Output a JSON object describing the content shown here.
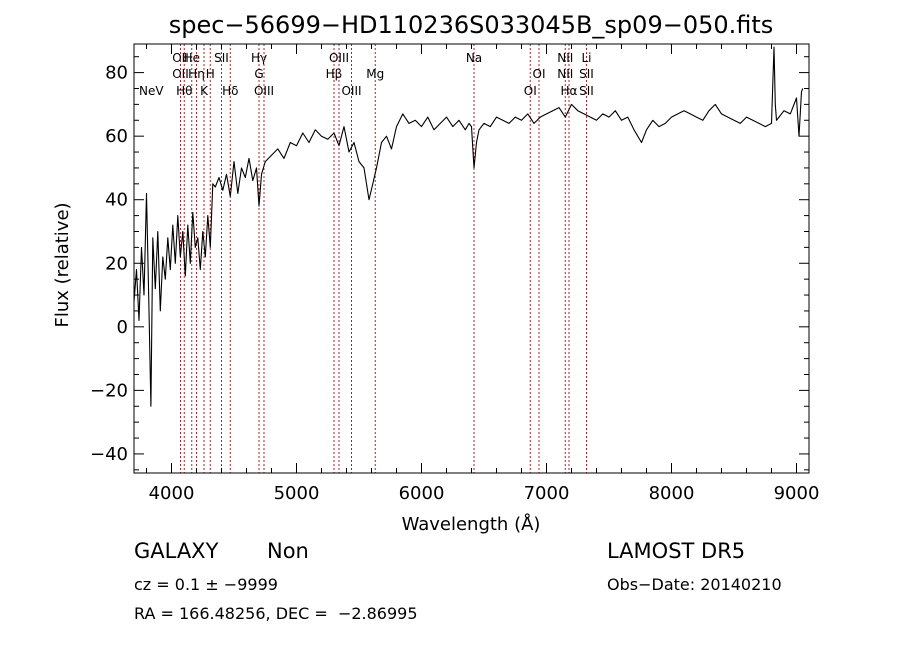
{
  "chart_data": {
    "type": "line",
    "title": "spec−56699−HD110236S033045B_sp09−050.fits",
    "xlabel": "Wavelength (Å)",
    "ylabel": "Flux (relative)",
    "xlim": [
      3700,
      9100
    ],
    "ylim": [
      -46,
      89
    ],
    "xticks": [
      4000,
      5000,
      6000,
      7000,
      8000,
      9000
    ],
    "yticks": [
      -40,
      -20,
      0,
      20,
      40,
      60,
      80
    ],
    "ytick_labels": [
      "−40",
      "−20",
      "0",
      "20",
      "40",
      "60",
      "80"
    ],
    "grid": false,
    "series": [
      {
        "x": [
          3700,
          3720,
          3740,
          3760,
          3780,
          3800,
          3820,
          3835,
          3850,
          3870,
          3890,
          3910,
          3930,
          3950,
          3970,
          3990,
          4010,
          4030,
          4050,
          4070,
          4090,
          4110,
          4130,
          4150,
          4170,
          4190,
          4210,
          4230,
          4250,
          4270,
          4290,
          4310,
          4330,
          4350,
          4380,
          4410,
          4440,
          4470,
          4500,
          4530,
          4560,
          4590,
          4620,
          4650,
          4680,
          4700,
          4720,
          4750,
          4800,
          4850,
          4900,
          4950,
          5000,
          5050,
          5100,
          5150,
          5200,
          5250,
          5300,
          5340,
          5380,
          5420,
          5460,
          5500,
          5540,
          5580,
          5610,
          5640,
          5680,
          5720,
          5760,
          5800,
          5850,
          5900,
          5950,
          6000,
          6050,
          6100,
          6150,
          6200,
          6250,
          6300,
          6350,
          6380,
          6400,
          6420,
          6440,
          6460,
          6500,
          6550,
          6600,
          6650,
          6700,
          6750,
          6800,
          6850,
          6900,
          6950,
          7000,
          7050,
          7100,
          7150,
          7200,
          7250,
          7300,
          7350,
          7400,
          7450,
          7500,
          7550,
          7600,
          7650,
          7700,
          7760,
          7800,
          7850,
          7900,
          7950,
          8000,
          8050,
          8100,
          8150,
          8200,
          8250,
          8300,
          8350,
          8400,
          8450,
          8500,
          8550,
          8600,
          8650,
          8700,
          8750,
          8800,
          8820,
          8830,
          8840,
          8860,
          8900,
          8950,
          9000,
          9020,
          9040,
          9050
        ],
        "y": [
          8,
          18,
          2,
          25,
          10,
          42,
          5,
          -25,
          28,
          12,
          30,
          5,
          22,
          15,
          28,
          18,
          32,
          20,
          35,
          22,
          30,
          16,
          32,
          20,
          36,
          25,
          28,
          18,
          30,
          22,
          35,
          25,
          45,
          44,
          47,
          43,
          48,
          41,
          52,
          42,
          50,
          47,
          53,
          46,
          50,
          38,
          48,
          52,
          54,
          56,
          53,
          58,
          57,
          61,
          58,
          62,
          60,
          59,
          61,
          57,
          63,
          55,
          58,
          52,
          50,
          40,
          45,
          50,
          58,
          60,
          56,
          63,
          67,
          64,
          65,
          63,
          66,
          62,
          64,
          66,
          63,
          65,
          62,
          64,
          63,
          50,
          58,
          62,
          64,
          63,
          66,
          65,
          64,
          66,
          65,
          67,
          64,
          66,
          67,
          68,
          69,
          66,
          70,
          68,
          67,
          66,
          65,
          67,
          66,
          68,
          65,
          66,
          62,
          58,
          62,
          65,
          63,
          64,
          66,
          67,
          68,
          67,
          66,
          65,
          68,
          70,
          67,
          66,
          65,
          64,
          66,
          65,
          64,
          63,
          64,
          88,
          70,
          65,
          66,
          68,
          67,
          72,
          60,
          74,
          75
        ]
      }
    ],
    "lines": [
      {
        "x": 4072,
        "labels": [
          {
            "text": "OII",
            "row": 1
          },
          {
            "text": "OII",
            "row": 2
          }
        ]
      },
      {
        "x": 4102,
        "labels": [
          {
            "text": "Hθ",
            "row": 3
          }
        ]
      },
      {
        "x": 4162,
        "labels": [
          {
            "text": "He",
            "row": 1
          }
        ]
      },
      {
        "x": 4200,
        "labels": [
          {
            "text": "Hη",
            "row": 2
          }
        ]
      },
      {
        "x": 4260,
        "labels": [
          {
            "text": "K",
            "row": 3
          }
        ]
      },
      {
        "x": 4310,
        "labels": [
          {
            "text": "H",
            "row": 2
          }
        ]
      },
      {
        "x": 4400,
        "labels": [
          {
            "text": "SII",
            "row": 1
          }
        ]
      },
      {
        "x": 4470,
        "labels": [
          {
            "text": "Hδ",
            "row": 3
          }
        ]
      },
      {
        "x": 4700,
        "labels": [
          {
            "text": "Hγ",
            "row": 1
          },
          {
            "text": "G",
            "row": 2
          }
        ]
      },
      {
        "x": 4740,
        "labels": [
          {
            "text": "OIII",
            "row": 3
          }
        ]
      },
      {
        "x": 5300,
        "labels": [
          {
            "text": "Hβ",
            "row": 2
          }
        ]
      },
      {
        "x": 5340,
        "labels": [
          {
            "text": "OIII",
            "row": 1
          }
        ]
      },
      {
        "x": 5440,
        "labels": [
          {
            "text": "OIII",
            "row": 3
          }
        ]
      },
      {
        "x": 5630,
        "labels": [
          {
            "text": "Mg",
            "row": 2
          }
        ]
      },
      {
        "x": 6420,
        "labels": [
          {
            "text": "Na",
            "row": 1
          }
        ]
      },
      {
        "x": 6870,
        "labels": [
          {
            "text": "OI",
            "row": 3
          }
        ]
      },
      {
        "x": 6940,
        "labels": [
          {
            "text": "OI",
            "row": 2
          }
        ]
      },
      {
        "x": 7150,
        "labels": [
          {
            "text": "NII",
            "row": 1
          },
          {
            "text": "NII",
            "row": 2
          }
        ]
      },
      {
        "x": 7180,
        "labels": [
          {
            "text": "Hα",
            "row": 3
          }
        ]
      },
      {
        "x": 7320,
        "labels": [
          {
            "text": "Li",
            "row": 1
          },
          {
            "text": "SII",
            "row": 2
          },
          {
            "text": "SII",
            "row": 3
          }
        ]
      }
    ],
    "edge_labels": [
      {
        "text": "NeV",
        "row": 3
      }
    ]
  },
  "info": {
    "class": "GALAXY",
    "subclass": "Non",
    "cz": "cz = 0.1 ± −9999",
    "radec": "RA = 166.48256, DEC =  −2.86995",
    "survey": "LAMOST DR5",
    "obsdate": "Obs−Date: 20140210"
  }
}
